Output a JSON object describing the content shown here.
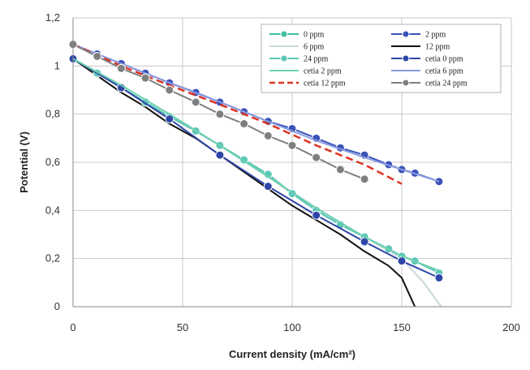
{
  "chart_data": {
    "type": "line",
    "title": "",
    "xlabel": "Current density (mA/cm²)",
    "ylabel": "Potential (V)",
    "xlim": [
      0,
      200
    ],
    "ylim": [
      0,
      1.2
    ],
    "xticks": [
      0,
      50,
      100,
      150,
      200
    ],
    "yticks": [
      0,
      0.2,
      0.4,
      0.6,
      0.8,
      1,
      1.2
    ],
    "xtick_labels": [
      "0",
      "50",
      "100",
      "150",
      "200"
    ],
    "ytick_labels": [
      "0",
      "0,2",
      "0,4",
      "0,6",
      "0,8",
      "1",
      "1,2"
    ],
    "grid": true,
    "legend_position": "top-right",
    "series": [
      {
        "name": "0 ppm",
        "color": "#3fbfa0",
        "marker": "circle",
        "x": [
          0,
          11,
          22,
          33,
          44,
          56,
          67,
          78,
          89,
          100,
          111,
          122,
          133,
          144,
          150,
          156,
          167
        ],
        "y": [
          1.03,
          0.97,
          0.91,
          0.85,
          0.79,
          0.73,
          0.67,
          0.61,
          0.55,
          0.47,
          0.4,
          0.34,
          0.29,
          0.24,
          0.21,
          0.19,
          0.14
        ]
      },
      {
        "name": "2 ppm",
        "color": "#3a52b8",
        "marker": "circle",
        "x": [
          0,
          11,
          22,
          33,
          44,
          56,
          67,
          78,
          89,
          100,
          111,
          122,
          133,
          144,
          150,
          156,
          167
        ],
        "y": [
          1.09,
          1.05,
          1.01,
          0.97,
          0.93,
          0.89,
          0.85,
          0.81,
          0.77,
          0.74,
          0.7,
          0.66,
          0.63,
          0.59,
          0.57,
          0.555,
          0.52
        ]
      },
      {
        "name": "6 ppm",
        "color": "#c8d8d8",
        "marker": "none",
        "x": [
          0,
          22,
          44,
          67,
          89,
          111,
          133,
          150,
          160,
          168
        ],
        "y": [
          1.03,
          0.91,
          0.79,
          0.67,
          0.54,
          0.4,
          0.29,
          0.2,
          0.1,
          0.0
        ]
      },
      {
        "name": "12 ppm",
        "color": "#111111",
        "marker": "none",
        "x": [
          0,
          11,
          22,
          33,
          44,
          56,
          67,
          78,
          89,
          100,
          111,
          122,
          133,
          144,
          150,
          153,
          156
        ],
        "y": [
          1.03,
          0.96,
          0.89,
          0.83,
          0.76,
          0.7,
          0.63,
          0.56,
          0.49,
          0.42,
          0.36,
          0.3,
          0.23,
          0.17,
          0.12,
          0.06,
          0.0
        ]
      },
      {
        "name": "24 ppm",
        "color": "#5cc6b8",
        "marker": "circle",
        "x": [
          0,
          11,
          22,
          33,
          44,
          56,
          67,
          78,
          89,
          100,
          111,
          122,
          133,
          144,
          150,
          156,
          167
        ],
        "y": [
          1.03,
          0.97,
          0.91,
          0.85,
          0.79,
          0.73,
          0.67,
          0.61,
          0.55,
          0.47,
          0.4,
          0.34,
          0.29,
          0.24,
          0.21,
          0.19,
          0.14
        ]
      },
      {
        "name": "cetia 0 ppm",
        "color": "#2e46a8",
        "marker": "circle",
        "x": [
          0,
          22,
          44,
          67,
          89,
          111,
          133,
          150,
          167
        ],
        "y": [
          1.03,
          0.91,
          0.78,
          0.63,
          0.5,
          0.38,
          0.27,
          0.19,
          0.12
        ]
      },
      {
        "name": "cetia 2 ppm",
        "color": "#6fd0b0",
        "marker": "none",
        "x": [
          0,
          22,
          44,
          67,
          89,
          111,
          133,
          150,
          167
        ],
        "y": [
          1.03,
          0.92,
          0.8,
          0.67,
          0.54,
          0.41,
          0.29,
          0.21,
          0.15
        ]
      },
      {
        "name": "cetia 6 ppm",
        "color": "#8a9be0",
        "marker": "none",
        "x": [
          0,
          22,
          44,
          67,
          89,
          111,
          133,
          150,
          167
        ],
        "y": [
          1.09,
          1.01,
          0.93,
          0.85,
          0.77,
          0.69,
          0.62,
          0.57,
          0.52
        ]
      },
      {
        "name": "cetia 12 ppm",
        "color": "#dd3322",
        "marker": "none",
        "dash": true,
        "x": [
          0,
          22,
          44,
          67,
          89,
          111,
          133,
          150
        ],
        "y": [
          1.09,
          1.0,
          0.92,
          0.84,
          0.76,
          0.67,
          0.59,
          0.51
        ]
      },
      {
        "name": "cetia 24 ppm",
        "color": "#7f7f7f",
        "marker": "circle",
        "x": [
          0,
          11,
          22,
          33,
          44,
          56,
          67,
          78,
          89,
          100,
          111,
          122,
          133
        ],
        "y": [
          1.09,
          1.04,
          0.99,
          0.95,
          0.9,
          0.85,
          0.8,
          0.76,
          0.71,
          0.67,
          0.62,
          0.57,
          0.53
        ]
      }
    ]
  }
}
